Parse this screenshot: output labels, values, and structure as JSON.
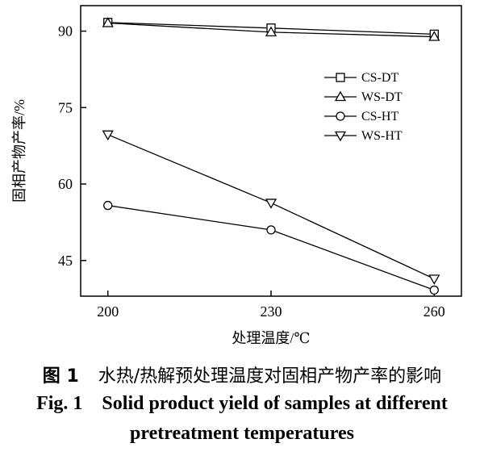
{
  "caption": {
    "cn_label": "图 1",
    "cn_text": "水热/热解预处理温度对固相产物产率的影响",
    "en_label": "Fig. 1",
    "en_line1": "Solid product yield of samples at different",
    "en_line2": "pretreatment temperatures"
  },
  "chart_data": {
    "type": "line",
    "title": "",
    "xlabel": "处理温度/℃",
    "ylabel": "固相产物产率/%",
    "x": [
      200,
      230,
      260
    ],
    "xlim": [
      195,
      265
    ],
    "ylim": [
      38,
      95
    ],
    "xticks": [
      200,
      230,
      260
    ],
    "yticks": [
      45,
      60,
      75,
      90
    ],
    "grid": false,
    "legend_position": "right",
    "series": [
      {
        "name": "CS-DT",
        "marker": "square",
        "values": [
          91.7,
          90.6,
          89.4
        ]
      },
      {
        "name": "WS-DT",
        "marker": "triangle-up",
        "values": [
          91.6,
          89.8,
          88.9
        ]
      },
      {
        "name": "CS-HT",
        "marker": "circle",
        "values": [
          55.8,
          51.0,
          39.2
        ]
      },
      {
        "name": "WS-HT",
        "marker": "triangle-down",
        "values": [
          69.7,
          56.3,
          41.4
        ]
      }
    ]
  }
}
